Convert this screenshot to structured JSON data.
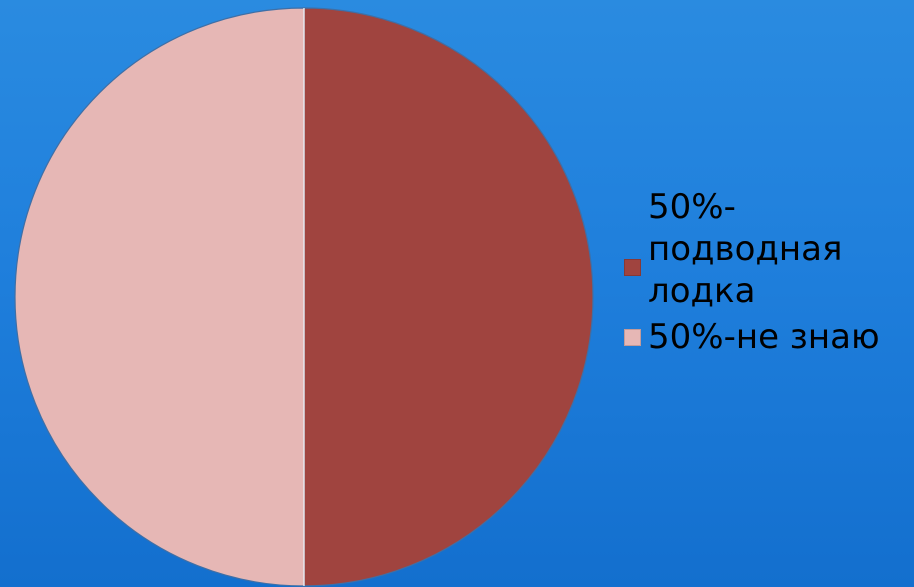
{
  "chart_data": {
    "type": "pie",
    "slices": [
      {
        "label": "50%-подводная лодка",
        "value": 50,
        "color": "#a0443f"
      },
      {
        "label": "50%-не знаю",
        "value": 50,
        "color": "#e6b7b5"
      }
    ],
    "legend_position": "right"
  },
  "legend": {
    "items": [
      {
        "label": "50%-\nподводная\nлодка",
        "color": "#a0443f"
      },
      {
        "label": "50%-не знаю",
        "color": "#e6b7b5"
      }
    ]
  }
}
